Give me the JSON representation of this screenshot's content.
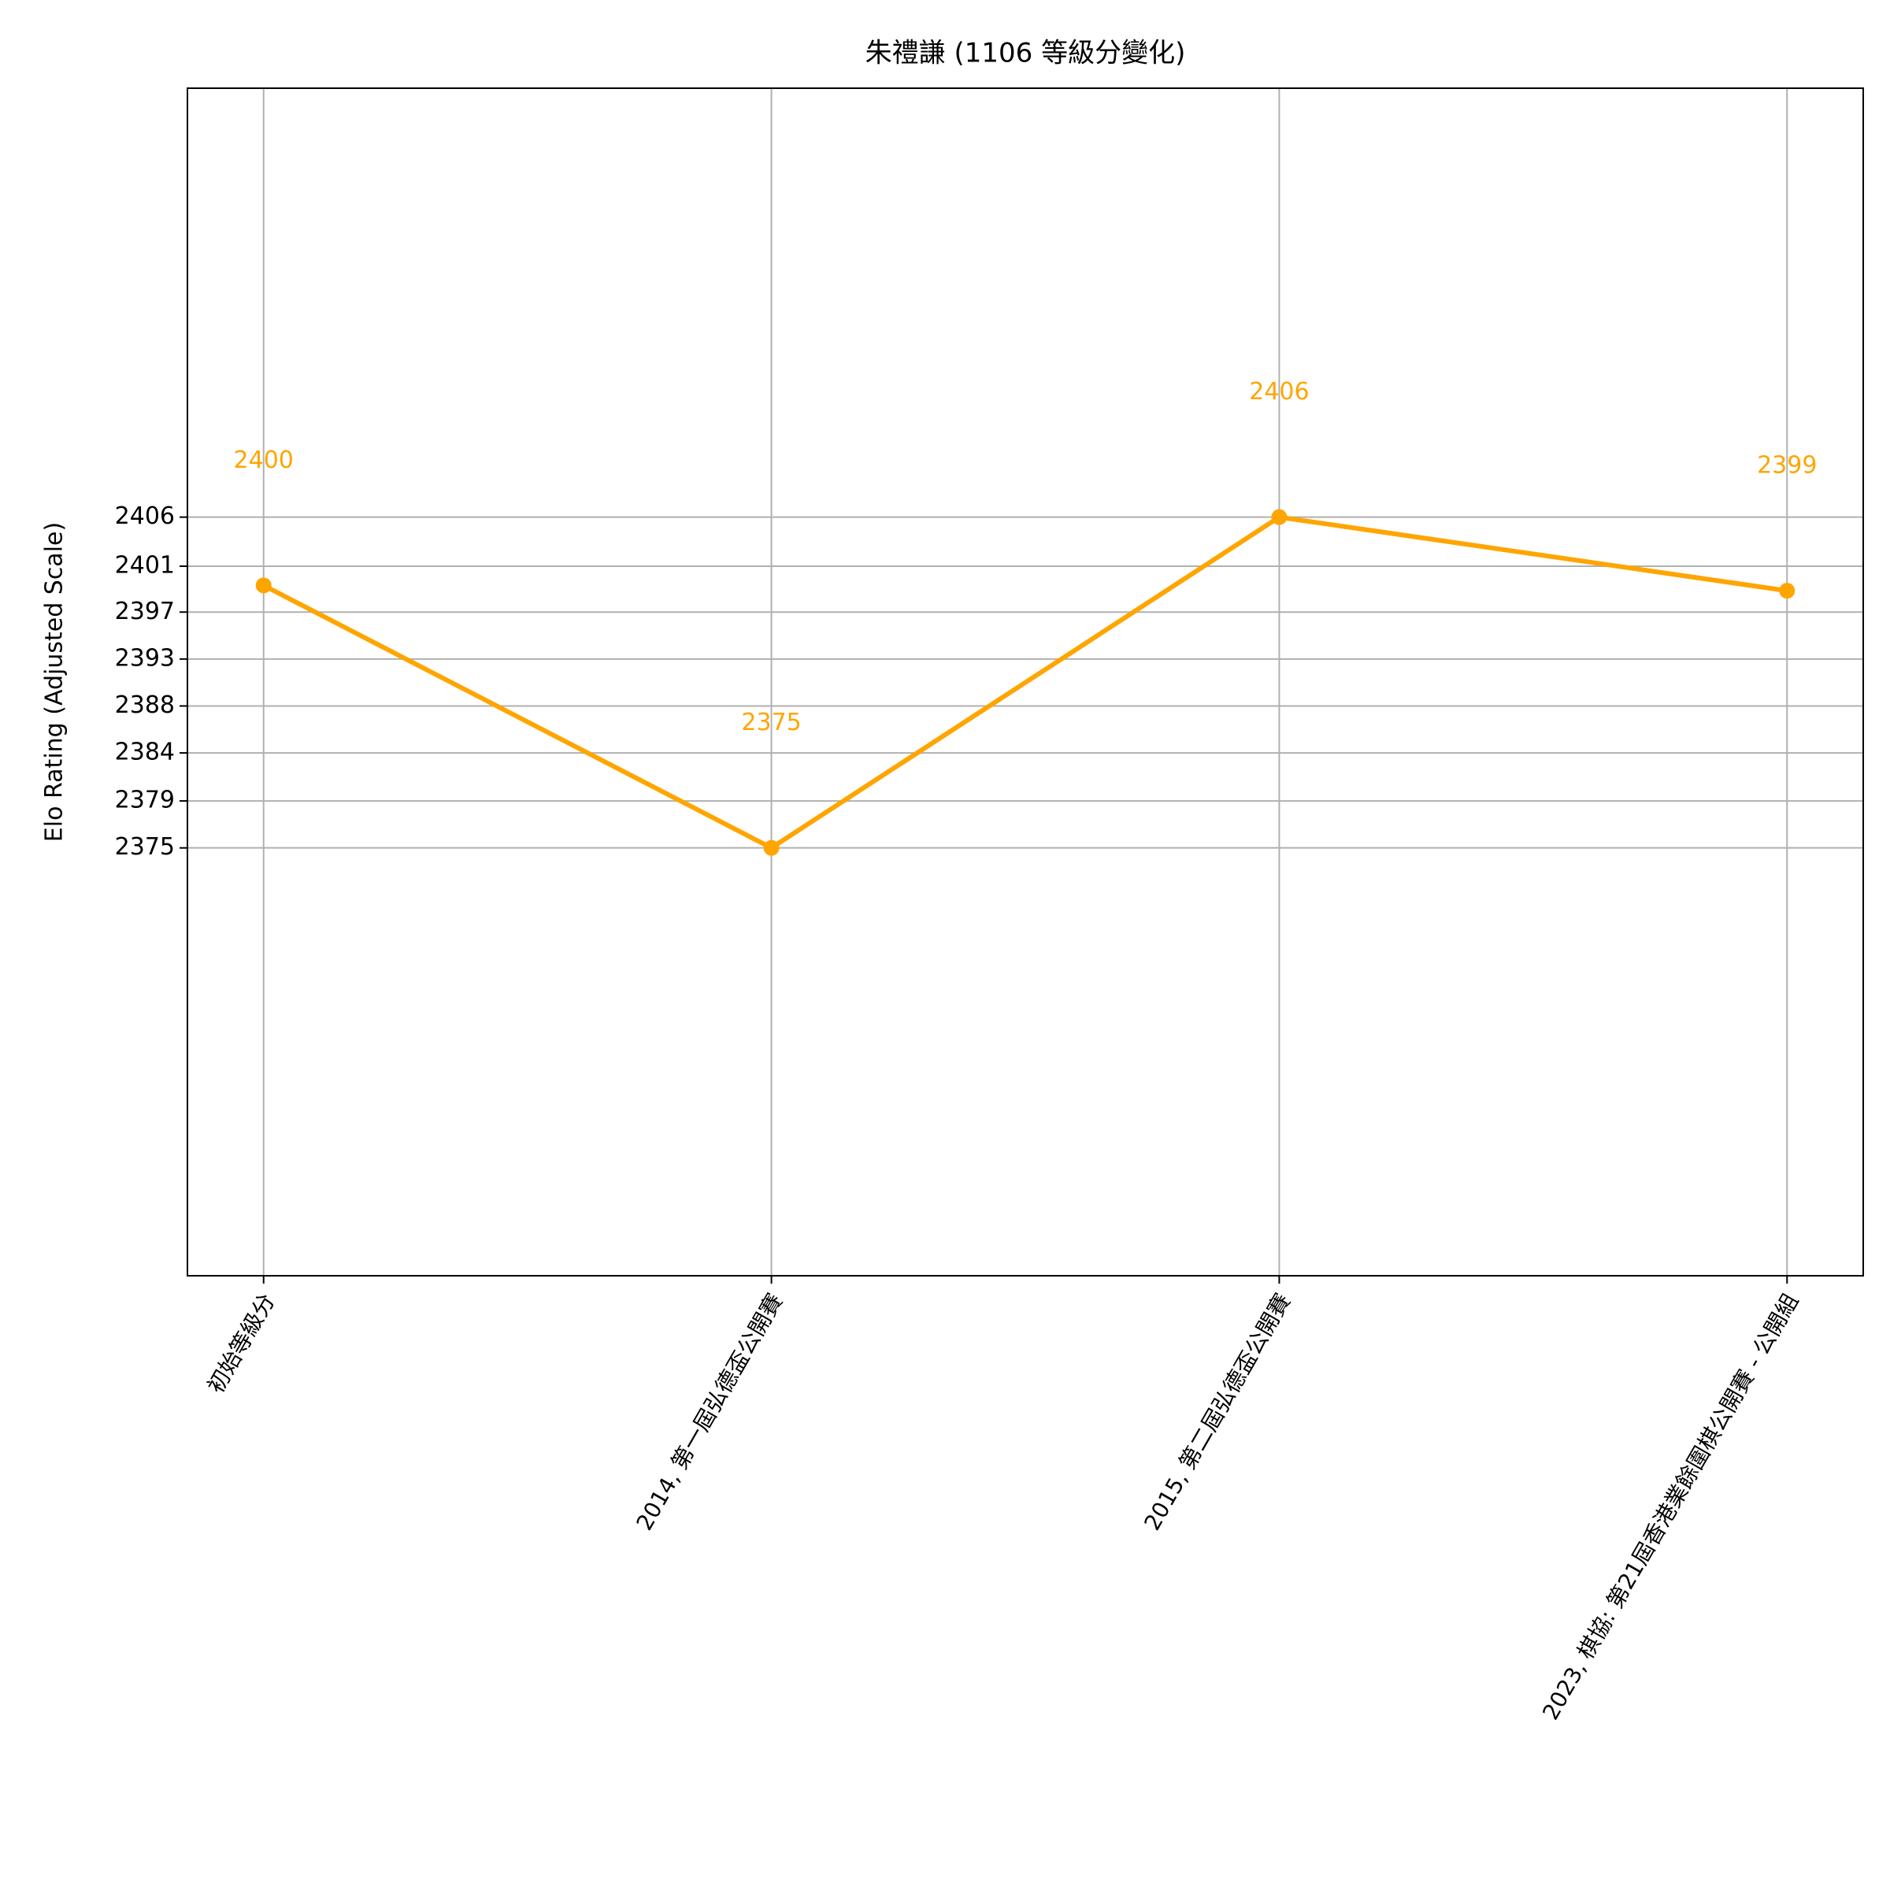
{
  "chart_data": {
    "type": "line",
    "title": "朱禮謙 (1106 等級分變化)",
    "y_label": "Elo Rating (Adjusted Scale)",
    "categories": [
      "初始等級分",
      "2014, 第一屆弘德盃公開賽",
      "2015, 第二屆弘德盃公開賽",
      "2023, 棋協: 第21屆香港業餘圍棋公開賽 - 公開組"
    ],
    "values": [
      2399.6,
      2375,
      2406,
      2399.1
    ],
    "value_labels": [
      "2400",
      "2375",
      "2406",
      "2399"
    ],
    "color": "#ffa500",
    "ylim": [
      2334.9,
      2446.2
    ],
    "yticks": [
      2375,
      {
        "value": 2379.4,
        "label": "2379"
      },
      {
        "value": 2383.9,
        "label": "2384"
      },
      {
        "value": 2388.3,
        "label": "2388"
      },
      {
        "value": 2392.7,
        "label": "2393"
      },
      {
        "value": 2397.1,
        "label": "2397"
      },
      {
        "value": 2401.4,
        "label": "2401"
      },
      2406
    ],
    "grid": true
  }
}
